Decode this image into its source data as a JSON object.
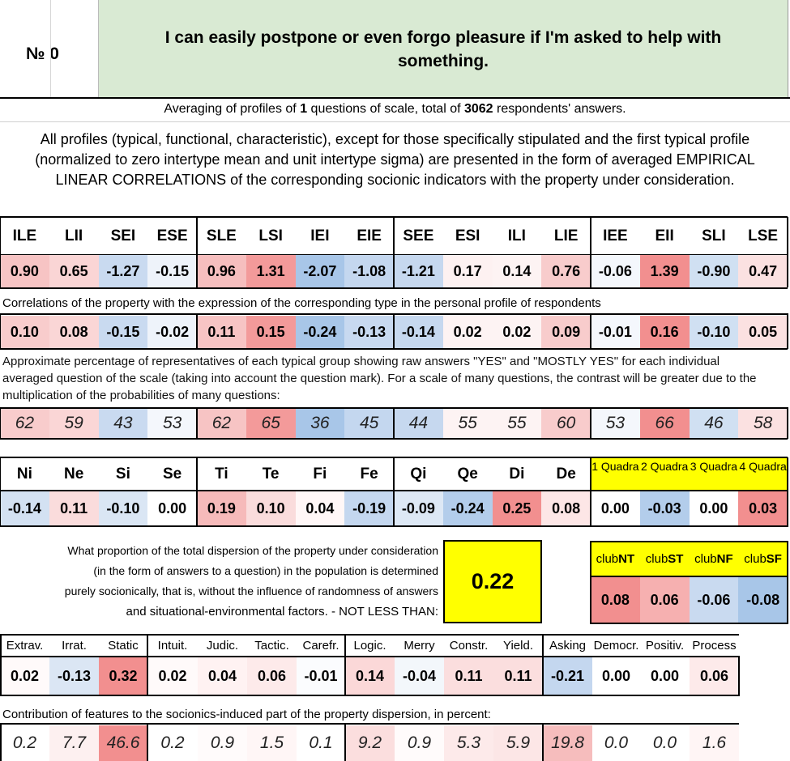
{
  "header": {
    "number": "№ 0",
    "question": "I can easily postpone or even forgo pleasure if I'm asked to help with something."
  },
  "summary": {
    "pre": "Averaging of profiles of ",
    "questions": "1",
    "mid": " questions of scale, total of ",
    "respondents": "3062",
    "post": " respondents' answers."
  },
  "description": "All profiles (typical, functional, characteristic), except for those specifically stipulated and the first typical profile (normalized to zero intertype mean and unit intertype sigma) are presented in the form of averaged EMPIRICAL LINEAR CORRELATIONS of the corresponding socionic indicators with the property under consideration.",
  "types": [
    "ILE",
    "LII",
    "SEI",
    "ESE",
    "SLE",
    "LSI",
    "IEI",
    "EIE",
    "SEE",
    "ESI",
    "ILI",
    "LIE",
    "IEE",
    "EII",
    "SLI",
    "LSE"
  ],
  "type_profile": [
    "0.90",
    "0.65",
    "-1.27",
    "-0.15",
    "0.96",
    "1.31",
    "-2.07",
    "-1.08",
    "-1.21",
    "0.17",
    "0.14",
    "0.76",
    "-0.06",
    "1.39",
    "-0.90",
    "0.47"
  ],
  "type_profile_colors": [
    "#f7c4c4",
    "#fad5d5",
    "#c9daf0",
    "#eef3fa",
    "#f6bebe",
    "#f39a9a",
    "#a8c6e8",
    "#c4d7ef",
    "#c6d8ef",
    "#fdf1f1",
    "#fdf3f3",
    "#f8cccc",
    "#f4f7fc",
    "#f28f8f",
    "#d0e0f2",
    "#fbe1e1"
  ],
  "correlations_note": "Correlations of the property with the expression of the corresponding type in the personal profile of respondents",
  "type_correlations": [
    "0.10",
    "0.08",
    "-0.15",
    "-0.02",
    "0.11",
    "0.15",
    "-0.24",
    "-0.13",
    "-0.14",
    "0.02",
    "0.02",
    "0.09",
    "-0.01",
    "0.16",
    "-0.10",
    "0.05"
  ],
  "type_correlations_colors": [
    "#f8cccc",
    "#fad6d6",
    "#c9daf0",
    "#eef3fa",
    "#f7c4c4",
    "#f39a9a",
    "#a8c6e8",
    "#c8d9f0",
    "#c6d8ef",
    "#fdf3f3",
    "#fdf3f3",
    "#f8cccc",
    "#f4f7fc",
    "#f28f8f",
    "#d0e0f2",
    "#fbe1e1"
  ],
  "percentage_note": "Approximate percentage of representatives of each typical group showing raw answers \"YES\" and \"MOSTLY YES\" for each individual averaged question of the scale (taking into account the question mark). For a scale of many questions, the contrast will be greater due to the multiplication of the probabilities of many questions:",
  "type_percentages": [
    "62",
    "59",
    "43",
    "53",
    "62",
    "65",
    "36",
    "45",
    "44",
    "55",
    "55",
    "60",
    "53",
    "66",
    "46",
    "58"
  ],
  "type_percentages_colors": [
    "#f8cccc",
    "#fad6d6",
    "#c9daf0",
    "#f4f7fc",
    "#f7c4c4",
    "#f39a9a",
    "#a8c6e8",
    "#c4d7ef",
    "#c6d8ef",
    "#fdf3f3",
    "#fdf3f3",
    "#f8cccc",
    "#f4f7fc",
    "#f28f8f",
    "#d0e0f2",
    "#fbe1e1"
  ],
  "functions": [
    "Ni",
    "Ne",
    "Si",
    "Se",
    "Ti",
    "Te",
    "Fi",
    "Fe",
    "Qi",
    "Qe",
    "Di",
    "De"
  ],
  "function_values": [
    "-0.14",
    "0.11",
    "-0.10",
    "0.00",
    "0.19",
    "0.10",
    "0.04",
    "-0.19",
    "-0.09",
    "-0.24",
    "0.25",
    "0.08"
  ],
  "function_colors": [
    "#d3e1f2",
    "#fadcdc",
    "#dae6f4",
    "#ffffff",
    "#f6baba",
    "#fadcdc",
    "#fff7f7",
    "#c4d7ef",
    "#dde8f5",
    "#b3cdeb",
    "#f28f8f",
    "#fde6e6"
  ],
  "quadras": [
    "1 Quadra",
    "2 Quadra",
    "3 Quadra",
    "4 Quadra"
  ],
  "quadra_values": [
    "0.00",
    "-0.03",
    "0.00",
    "0.03"
  ],
  "quadra_colors": [
    "#ffffff",
    "#b3cdeb",
    "#ffffff",
    "#f28f8f"
  ],
  "dispersion": {
    "lines": [
      "What proportion of the total dispersion of the property under consideration",
      "(in the form of answers to a question) in the population is determined",
      "purely socionically, that is, without the influence of randomness of answers",
      "and situational-environmental factors. - NOT LESS THAN:"
    ],
    "value": "0.22"
  },
  "clubs": [
    {
      "pre": "club",
      "name": "NT",
      "value": "0.08",
      "color": "#f28f8f"
    },
    {
      "pre": "club",
      "name": "ST",
      "value": "0.06",
      "color": "#f6b0b0"
    },
    {
      "pre": "club",
      "name": "NF",
      "value": "-0.06",
      "color": "#c9daf0"
    },
    {
      "pre": "club",
      "name": "SF",
      "value": "-0.08",
      "color": "#a8c6e8"
    }
  ],
  "traits": [
    "Extrav.",
    "Irrat.",
    "Static",
    "Intuit.",
    "Judic.",
    "Tactic.",
    "Carefr.",
    "Logic.",
    "Merry",
    "Constr.",
    "Yield.",
    "Asking",
    "Democr.",
    "Positiv.",
    "Process"
  ],
  "trait_values": [
    "0.02",
    "-0.13",
    "0.32",
    "0.02",
    "0.04",
    "0.06",
    "-0.01",
    "0.14",
    "-0.04",
    "0.11",
    "0.11",
    "-0.21",
    "0.00",
    "0.00",
    "0.06"
  ],
  "trait_colors": [
    "#fffafa",
    "#dbe6f4",
    "#f28f8f",
    "#fffafa",
    "#fff2f2",
    "#fdeaea",
    "#fbfcfe",
    "#fbd8d8",
    "#f3f7fb",
    "#fbdede",
    "#fbdede",
    "#c4d7ef",
    "#ffffff",
    "#ffffff",
    "#fdeaea"
  ],
  "contribution_note": "Contribution of features to the socionics-induced part of the property dispersion, in percent:",
  "trait_contributions": [
    "0.2",
    "7.7",
    "46.6",
    "0.2",
    "0.9",
    "1.5",
    "0.1",
    "9.2",
    "0.9",
    "5.3",
    "5.9",
    "19.8",
    "0.0",
    "0.0",
    "1.6"
  ],
  "trait_contrib_colors": [
    "#ffffff",
    "#fdf0f0",
    "#f28f8f",
    "#ffffff",
    "#fffbfb",
    "#fff6f6",
    "#ffffff",
    "#fbdede",
    "#fffbfb",
    "#fdeaea",
    "#fce6e6",
    "#f6bdbd",
    "#ffffff",
    "#ffffff",
    "#fff5f5"
  ]
}
